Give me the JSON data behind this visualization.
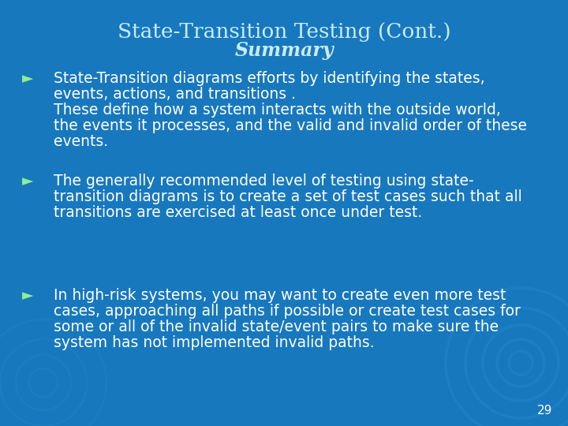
{
  "title": "State-Transition Testing (Cont.)",
  "subtitle": "Summary",
  "bg_color": "#1878be",
  "title_color": "#c8ecf8",
  "subtitle_color": "#c8ecf8",
  "text_color": "#ffffff",
  "bullet_color": "#90ee90",
  "page_number": "29",
  "bullets": [
    {
      "lines": [
        "State-Transition diagrams efforts by identifying the states,",
        "events, actions, and transitions .",
        "These define how a system interacts with the outside world,",
        "the events it processes, and the valid and invalid order of these",
        "events."
      ]
    },
    {
      "lines": [
        "The generally recommended level of testing using state-",
        "transition diagrams is to create a set of test cases such that all",
        "transitions are exercised at least once under test."
      ]
    },
    {
      "lines": [
        "In high-risk systems, you may want to create even more test",
        "cases, approaching all paths if possible or create test cases for",
        "some or all of the invalid state/event pairs to make sure the",
        "system has not implemented invalid paths."
      ]
    }
  ],
  "figsize": [
    7.2,
    5.4
  ],
  "dpi": 100
}
